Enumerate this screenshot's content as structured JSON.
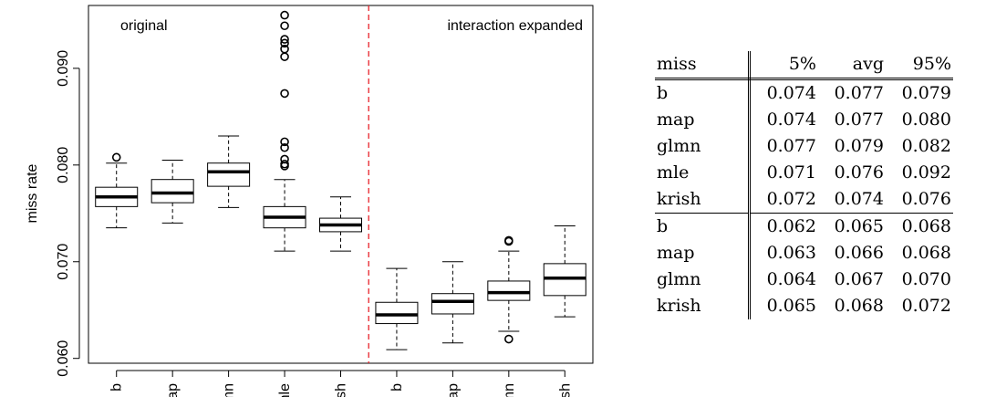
{
  "chart_data": {
    "type": "boxplot",
    "ylabel": "miss rate",
    "ylim": [
      0.0595,
      0.0965
    ],
    "yticks": [
      "0.060",
      "0.070",
      "0.080",
      "0.090"
    ],
    "sections": [
      {
        "label": "original"
      },
      {
        "label": "interaction expanded"
      }
    ],
    "categories": [
      "b",
      "map",
      "glmn",
      "mle",
      "krish",
      "b",
      "map",
      "glmn",
      "krish"
    ],
    "boxes": [
      {
        "category": "b",
        "whisker_low": 0.0735,
        "q1": 0.0757,
        "median": 0.0767,
        "q3": 0.0777,
        "whisker_high": 0.0802,
        "outliers": [
          0.0808
        ]
      },
      {
        "category": "map",
        "whisker_low": 0.074,
        "q1": 0.0761,
        "median": 0.0771,
        "q3": 0.0785,
        "whisker_high": 0.0805,
        "outliers": []
      },
      {
        "category": "glmn",
        "whisker_low": 0.0756,
        "q1": 0.0778,
        "median": 0.0793,
        "q3": 0.0802,
        "whisker_high": 0.083,
        "outliers": []
      },
      {
        "category": "mle",
        "whisker_low": 0.0711,
        "q1": 0.0735,
        "median": 0.0746,
        "q3": 0.0757,
        "whisker_high": 0.0785,
        "outliers": [
          0.0799,
          0.0801,
          0.0806,
          0.0818,
          0.0824,
          0.0874,
          0.0912,
          0.092,
          0.0926,
          0.093,
          0.0944,
          0.0955
        ]
      },
      {
        "category": "krish",
        "whisker_low": 0.0711,
        "q1": 0.0731,
        "median": 0.0738,
        "q3": 0.0745,
        "whisker_high": 0.0767,
        "outliers": []
      },
      {
        "category": "b",
        "whisker_low": 0.0609,
        "q1": 0.0636,
        "median": 0.0645,
        "q3": 0.0658,
        "whisker_high": 0.0693,
        "outliers": []
      },
      {
        "category": "map",
        "whisker_low": 0.0616,
        "q1": 0.0646,
        "median": 0.0659,
        "q3": 0.0667,
        "whisker_high": 0.07,
        "outliers": []
      },
      {
        "category": "glmn",
        "whisker_low": 0.0628,
        "q1": 0.066,
        "median": 0.0668,
        "q3": 0.068,
        "whisker_high": 0.0711,
        "outliers": [
          0.062,
          0.0721,
          0.0722
        ]
      },
      {
        "category": "krish",
        "whisker_low": 0.0643,
        "q1": 0.0665,
        "median": 0.0683,
        "q3": 0.0698,
        "whisker_high": 0.0737,
        "outliers": []
      }
    ],
    "colors": {
      "box": "#000000",
      "divider": "#e8232b"
    },
    "grid": false
  },
  "table": {
    "headers": [
      "miss",
      "5%",
      "avg",
      "95%"
    ],
    "groups": [
      [
        [
          "b",
          "0.074",
          "0.077",
          "0.079"
        ],
        [
          "map",
          "0.074",
          "0.077",
          "0.080"
        ],
        [
          "glmn",
          "0.077",
          "0.079",
          "0.082"
        ],
        [
          "mle",
          "0.071",
          "0.076",
          "0.092"
        ],
        [
          "krish",
          "0.072",
          "0.074",
          "0.076"
        ]
      ],
      [
        [
          "b",
          "0.062",
          "0.065",
          "0.068"
        ],
        [
          "map",
          "0.063",
          "0.066",
          "0.068"
        ],
        [
          "glmn",
          "0.064",
          "0.067",
          "0.070"
        ],
        [
          "krish",
          "0.065",
          "0.068",
          "0.072"
        ]
      ]
    ]
  }
}
